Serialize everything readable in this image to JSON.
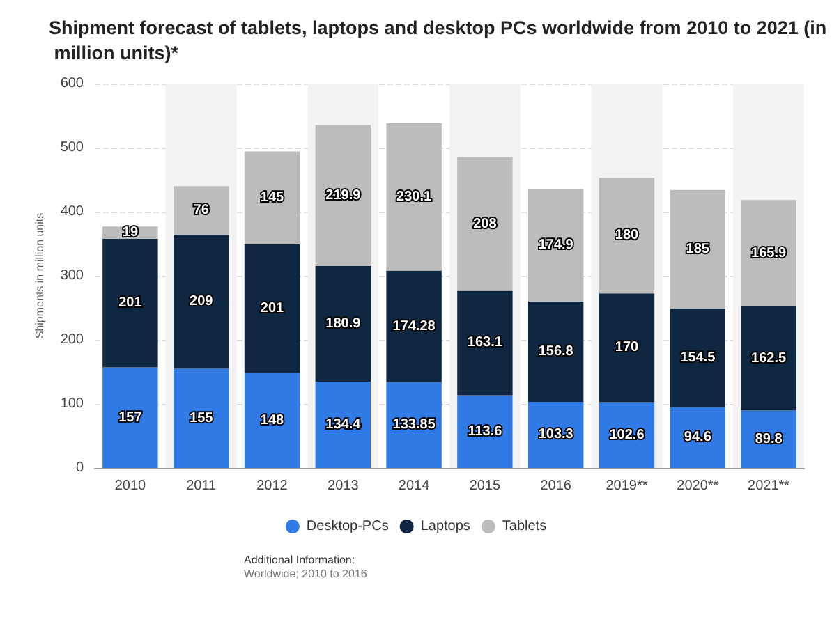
{
  "chart_data": {
    "type": "bar",
    "title": "Shipment forecast of tablets, laptops and desktop PCs worldwide from 2010 to 2021 (in million units)*",
    "ylabel": "Shipments in million units",
    "categories": [
      "2010",
      "2011",
      "2012",
      "2013",
      "2014",
      "2015",
      "2016",
      "2019**",
      "2020**",
      "2021**"
    ],
    "series": [
      {
        "name": "Desktop-PCs",
        "color": "#2f7ae5",
        "values": [
          157,
          155,
          148,
          134.4,
          133.85,
          113.6,
          103.3,
          102.6,
          94.6,
          89.8
        ]
      },
      {
        "name": "Laptops",
        "color": "#0f2741",
        "values": [
          201,
          209,
          201,
          180.9,
          174.28,
          163.1,
          156.8,
          170,
          154.5,
          162.5
        ]
      },
      {
        "name": "Tablets",
        "color": "#bcbcbc",
        "values": [
          19,
          76,
          145,
          219.9,
          230.1,
          208,
          174.9,
          180,
          185,
          165.9
        ]
      }
    ],
    "stacked": true,
    "data_labels": true,
    "ylim": [
      0,
      600
    ],
    "yticks": [
      0,
      100,
      200,
      300,
      400,
      500,
      600
    ],
    "grid": "y",
    "legend": "bottom",
    "annotations": [
      "Additional Information:",
      "Worldwide; 2010 to 2016"
    ]
  }
}
